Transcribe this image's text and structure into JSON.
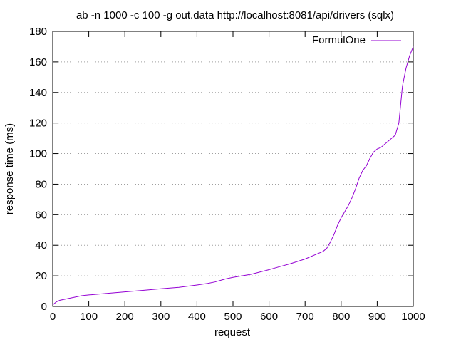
{
  "chart_data": {
    "type": "line",
    "title": "ab -n 1000 -c 100 -g out.data http://localhost:8081/api/drivers (sqlx)",
    "xlabel": "request",
    "ylabel": "response time (ms)",
    "xlim": [
      0,
      1000
    ],
    "ylim": [
      0,
      180
    ],
    "x_ticks": [
      "0",
      "100",
      "200",
      "300",
      "400",
      "500",
      "600",
      "700",
      "800",
      "900",
      "1000"
    ],
    "y_ticks": [
      "0",
      "20",
      "40",
      "60",
      "80",
      "100",
      "120",
      "140",
      "160",
      "180"
    ],
    "grid": "horizontal dotted",
    "legend_position": "top-right",
    "series": [
      {
        "name": "FormulOne",
        "color": "#9400d3",
        "x": [
          0,
          10,
          20,
          40,
          60,
          80,
          100,
          150,
          200,
          250,
          300,
          350,
          400,
          430,
          450,
          480,
          500,
          550,
          600,
          630,
          660,
          700,
          730,
          750,
          760,
          770,
          780,
          790,
          800,
          810,
          820,
          830,
          840,
          850,
          860,
          870,
          880,
          890,
          900,
          910,
          920,
          930,
          940,
          950,
          960,
          965,
          970,
          975,
          980,
          990,
          1000
        ],
        "y": [
          1,
          3,
          4,
          5,
          6,
          7,
          7.5,
          8.5,
          9.5,
          10.5,
          11.5,
          12.5,
          14,
          15,
          16,
          18,
          19,
          21,
          24,
          26,
          28,
          31,
          34,
          36,
          38,
          42,
          47,
          53,
          58,
          62,
          66,
          71,
          77,
          84,
          89,
          92,
          97,
          101,
          103,
          104,
          106,
          108,
          110,
          112,
          120,
          132,
          144,
          150,
          156,
          164,
          170
        ]
      }
    ]
  }
}
